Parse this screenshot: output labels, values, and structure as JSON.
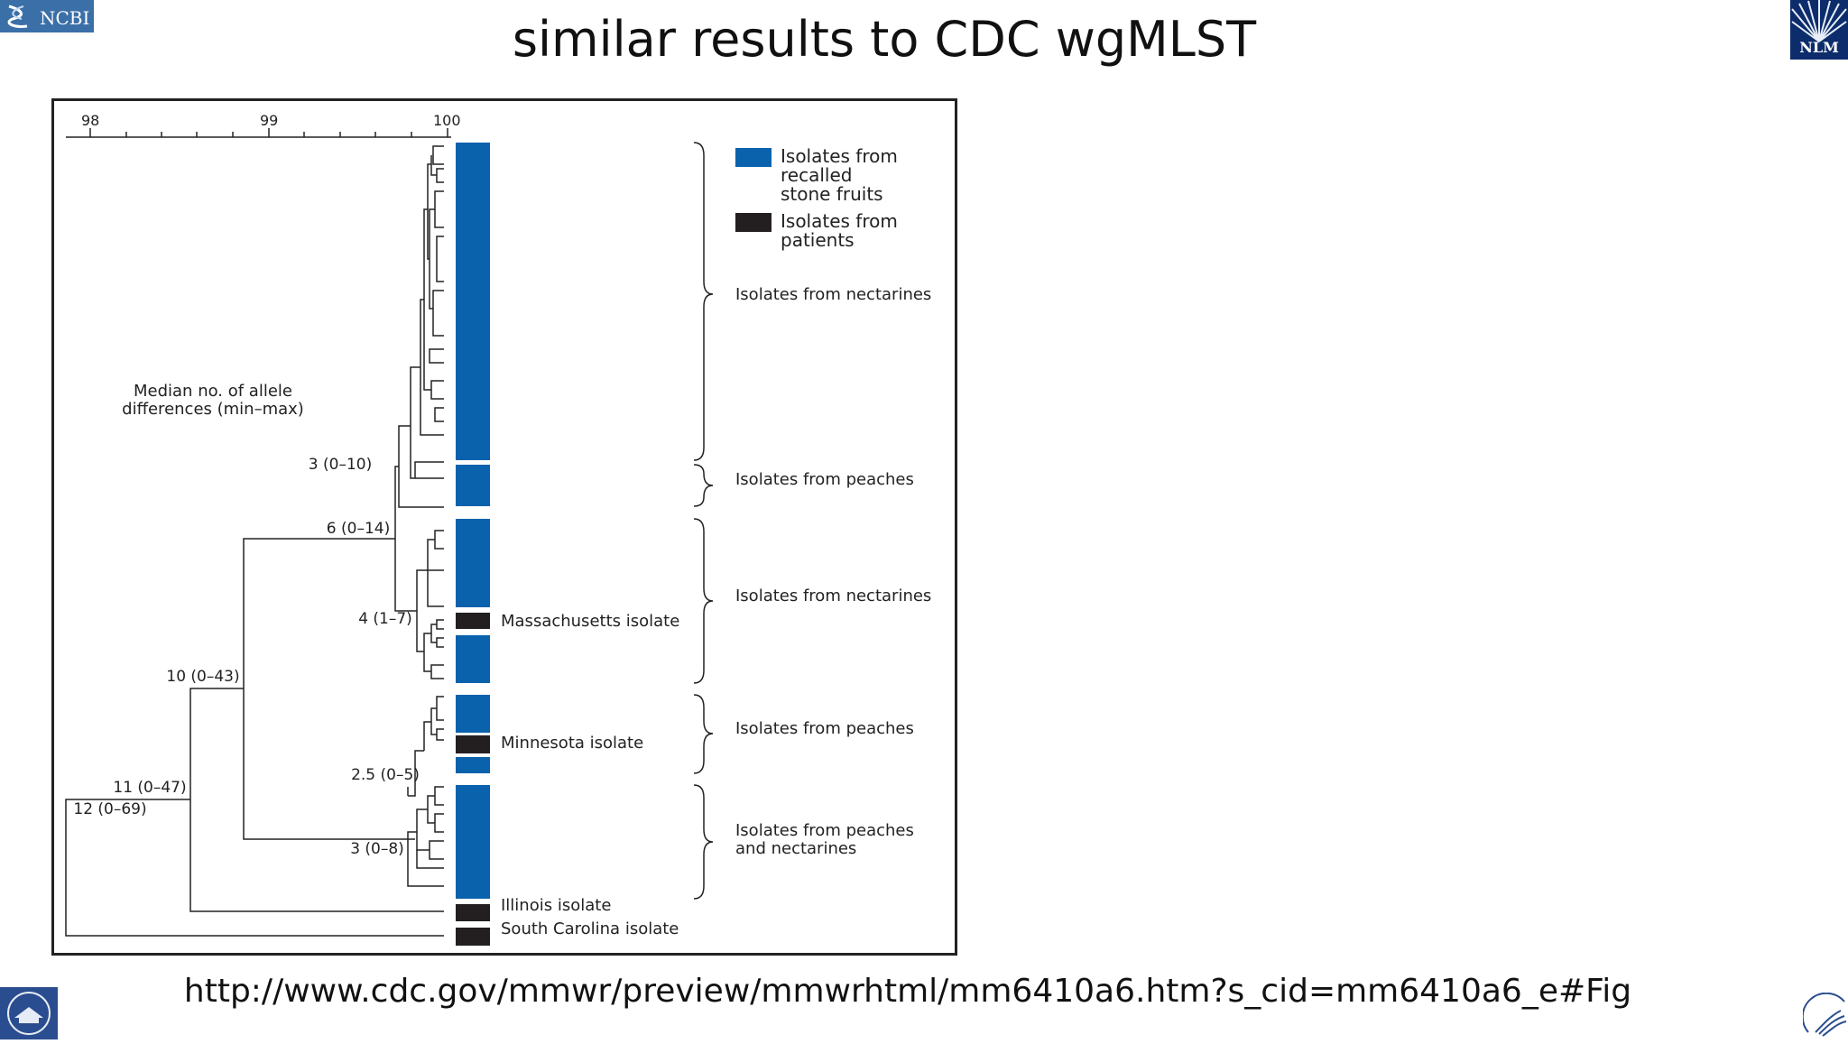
{
  "slide": {
    "title": "similar results to CDC wgMLST",
    "source_url": "http://www.cdc.gov/mmwr/preview/mmwrhtml/mm6410a6.htm?s_cid=mm6410a6_e#Fig"
  },
  "logos": {
    "ncbi": "NCBI",
    "nlm": "NLM"
  },
  "figure": {
    "scale": {
      "ticks": [
        "98",
        "99",
        "100"
      ]
    },
    "axis_note": [
      "Median no. of allele",
      "differences (min–max)"
    ],
    "node_labels": [
      "3 (0–10)",
      "6 (0–14)",
      "4 (1–7)",
      "10 (0–43)",
      "2.5 (0–5)",
      "11 (0–47)",
      "12 (0–69)",
      "3 (0–8)"
    ],
    "isolate_labels": {
      "massachusetts": "Massachusetts isolate",
      "minnesota": "Minnesota isolate",
      "illinois": "Illinois isolate",
      "south_carolina": "South Carolina isolate"
    },
    "legend": {
      "fruits": [
        "Isolates from",
        "recalled",
        "stone fruits"
      ],
      "patients": [
        "Isolates from",
        "patients"
      ]
    },
    "groups": {
      "nectarines_1": "Isolates from nectarines",
      "peaches_1": "Isolates from peaches",
      "nectarines_2": "Isolates from nectarines",
      "peaches_2": "Isolates from peaches",
      "peaches_and_nectarines": [
        "Isolates from peaches",
        "and nectarines"
      ]
    },
    "colors": {
      "fruits": "#0a62ad",
      "patients": "#231f20"
    }
  }
}
